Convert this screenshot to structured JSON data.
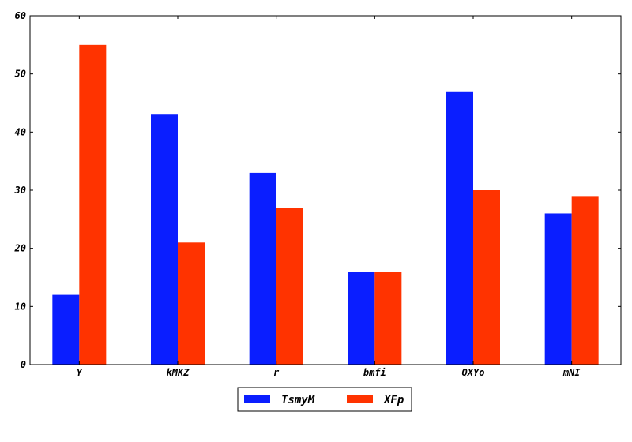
{
  "chart_data": {
    "type": "bar",
    "categories": [
      "Y",
      "kMKZ",
      "r",
      "bmfi",
      "QXYo",
      "mNI"
    ],
    "series": [
      {
        "name": "TsmyM",
        "color": "#0a1eff",
        "values": [
          12,
          43,
          33,
          16,
          47,
          26
        ]
      },
      {
        "name": "XFp",
        "color": "#ff3300",
        "values": [
          55,
          21,
          27,
          16,
          30,
          29
        ]
      }
    ],
    "title": "",
    "xlabel": "",
    "ylabel": "",
    "ylim": [
      0,
      60
    ],
    "yticks": [
      0,
      10,
      20,
      30,
      40,
      50,
      60
    ],
    "grid": false,
    "legend_position": "bottom-center"
  }
}
